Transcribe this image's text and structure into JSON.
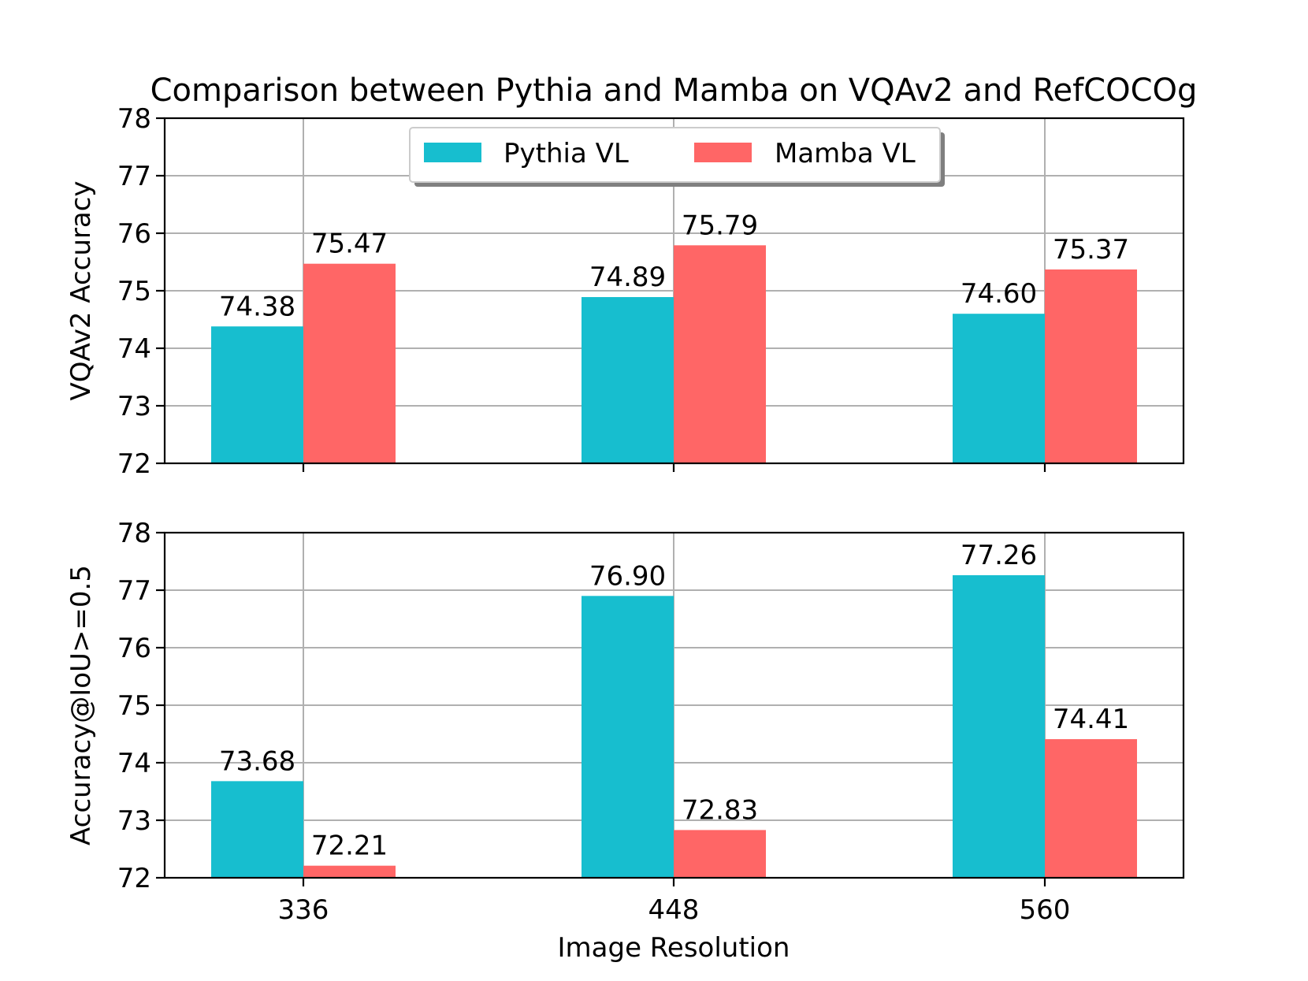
{
  "chart_data": [
    {
      "type": "bar",
      "title": "Comparison between Pythia and Mamba on VQAv2 and RefCOCOg",
      "categories": [
        "336",
        "448",
        "560"
      ],
      "series": [
        {
          "name": "Pythia VL",
          "color": "#17becf",
          "values": [
            74.38,
            74.89,
            74.6
          ],
          "labels": [
            "74.38",
            "74.89",
            "74.60"
          ]
        },
        {
          "name": "Mamba VL",
          "color": "#ff6666",
          "values": [
            75.47,
            75.79,
            75.37
          ],
          "labels": [
            "75.47",
            "75.79",
            "75.37"
          ]
        }
      ],
      "xlabel": "",
      "ylabel": "VQAv2 Accuracy",
      "ylim": [
        72,
        78
      ],
      "yticks": [
        "72",
        "73",
        "74",
        "75",
        "76",
        "77",
        "78"
      ],
      "grid": true,
      "legend": "upper-center"
    },
    {
      "type": "bar",
      "title": "",
      "categories": [
        "336",
        "448",
        "560"
      ],
      "series": [
        {
          "name": "Pythia VL",
          "color": "#17becf",
          "values": [
            73.68,
            76.9,
            77.26
          ],
          "labels": [
            "73.68",
            "76.90",
            "77.26"
          ]
        },
        {
          "name": "Mamba VL",
          "color": "#ff6666",
          "values": [
            72.21,
            72.83,
            74.41
          ],
          "labels": [
            "72.21",
            "72.83",
            "74.41"
          ]
        }
      ],
      "xlabel": "Image Resolution",
      "ylabel": "Accuracy@IoU>=0.5",
      "ylim": [
        72,
        78
      ],
      "yticks": [
        "72",
        "73",
        "74",
        "75",
        "76",
        "77",
        "78"
      ],
      "grid": true
    }
  ]
}
